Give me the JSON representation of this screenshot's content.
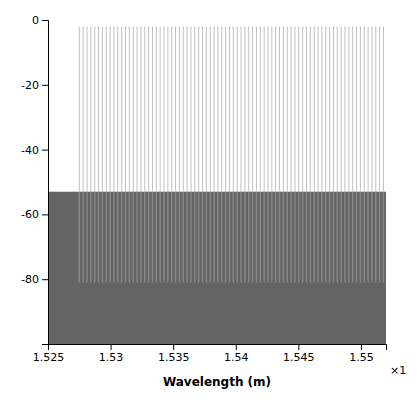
{
  "chart_data": {
    "type": "vlines",
    "xlabel": "Wavelength (m)",
    "annotations": [
      "×1"
    ],
    "xlim": [
      1.525e-06,
      1.552e-06
    ],
    "ylim": [
      -100,
      0
    ],
    "xticks": [
      {
        "value": 1.525e-06,
        "label": "1.525"
      },
      {
        "value": 1.53e-06,
        "label": "1.53"
      },
      {
        "value": 1.535e-06,
        "label": "1.535"
      },
      {
        "value": 1.54e-06,
        "label": "1.54"
      },
      {
        "value": 1.545e-06,
        "label": "1.545"
      },
      {
        "value": 1.55e-06,
        "label": "1.55"
      }
    ],
    "yticks": [
      0,
      -20,
      -40,
      -60,
      -80
    ],
    "x": [
      1.5275e-06,
      1.5278075949367e-06,
      1.5281151898734e-06,
      1.5284227848101e-06,
      1.5287303797468e-06,
      1.5290379746835e-06,
      1.5293455696203e-06,
      1.529653164557e-06,
      1.5299607594937e-06,
      1.5302683544304e-06,
      1.5305759493671e-06,
      1.5308835443038e-06,
      1.5311911392405e-06,
      1.5314987341772e-06,
      1.5318063291139e-06,
      1.5321139240506e-06,
      1.5324215189873e-06,
      1.5327291139241e-06,
      1.5330367088608e-06,
      1.5333443037975e-06,
      1.5336518987342e-06,
      1.5339594936709e-06,
      1.5342670886076e-06,
      1.5345746835443e-06,
      1.534882278481e-06,
      1.5351898734177e-06,
      1.5354974683544e-06,
      1.5358050632911e-06,
      1.5361126582278e-06,
      1.5364202531646e-06,
      1.5367278481013e-06,
      1.537035443038e-06,
      1.5373430379747e-06,
      1.5376506329114e-06,
      1.5379582278481e-06,
      1.5382658227848e-06,
      1.5385734177215e-06,
      1.5388810126582e-06,
      1.5391886075949e-06,
      1.5394962025316e-06,
      1.5398037974684e-06,
      1.5401113924051e-06,
      1.5404189873418e-06,
      1.5407265822785e-06,
      1.5410341772152e-06,
      1.5413417721519e-06,
      1.5416493670886e-06,
      1.5419569620253e-06,
      1.542264556962e-06,
      1.5425721518987e-06,
      1.5428797468354e-06,
      1.5431873417722e-06,
      1.5434949367089e-06,
      1.5438025316456e-06,
      1.5441101265823e-06,
      1.544417721519e-06,
      1.5447253164557e-06,
      1.5450329113924e-06,
      1.5453405063291e-06,
      1.5456481012658e-06,
      1.5459556962025e-06,
      1.5462632911392e-06,
      1.5465708860759e-06,
      1.5468784810127e-06,
      1.5471860759494e-06,
      1.5474936708861e-06,
      1.5478012658228e-06,
      1.5481088607595e-06,
      1.5484164556962e-06,
      1.5487240506329e-06,
      1.5490316455696e-06,
      1.5493392405063e-06,
      1.549646835443e-06,
      1.5499544303797e-06,
      1.5502620253165e-06,
      1.5505696202532e-06,
      1.5508772151899e-06,
      1.5511848101266e-06,
      1.5514924050633e-06,
      1.5518e-06
    ],
    "series": [
      {
        "high": -2,
        "low": -53,
        "color": "#c0c0c0"
      },
      {
        "high": -53,
        "low": -81,
        "color": "#888888"
      }
    ],
    "fill": {
      "high": -53,
      "low": -100,
      "color": "#646464"
    }
  }
}
